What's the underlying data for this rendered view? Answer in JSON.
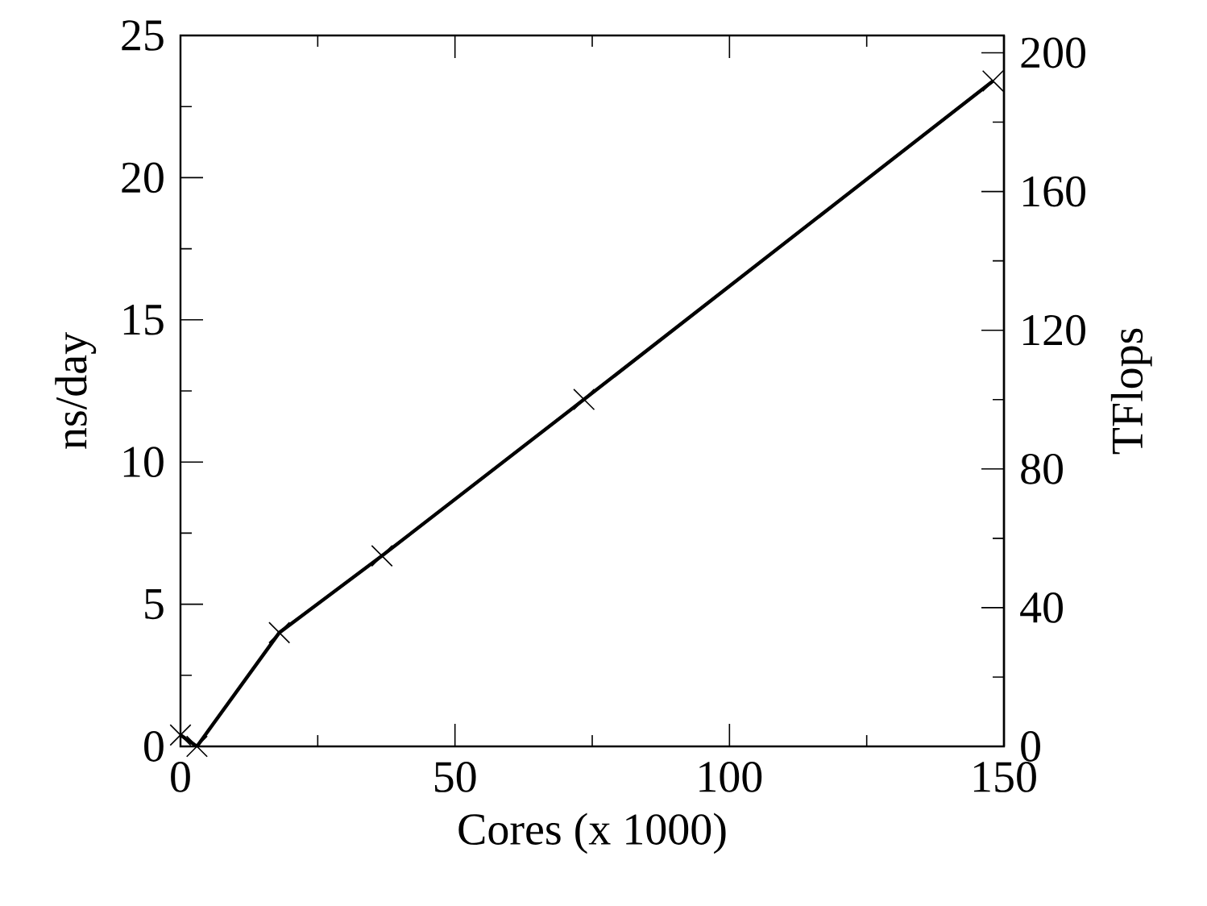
{
  "chart_data": {
    "type": "line",
    "xlabel": "Cores (x 1000)",
    "ylabel": "ns/day",
    "y2label": "TFlops",
    "x": [
      0,
      3,
      18,
      36.7,
      73.5,
      148
    ],
    "series": [
      {
        "color": "#000000",
        "values": [
          0.4,
          0,
          4,
          6.7,
          12.2,
          23.4
        ]
      }
    ],
    "xlim": [
      0,
      150
    ],
    "xticks": [
      0,
      50,
      100,
      150
    ],
    "ylim": [
      0,
      25
    ],
    "yticks": [
      0,
      5,
      10,
      15,
      20,
      25
    ],
    "y2lim": [
      0,
      205
    ],
    "y2ticks": [
      0,
      40,
      80,
      120,
      160,
      200
    ],
    "marker": "cross",
    "line_style": "solid"
  }
}
